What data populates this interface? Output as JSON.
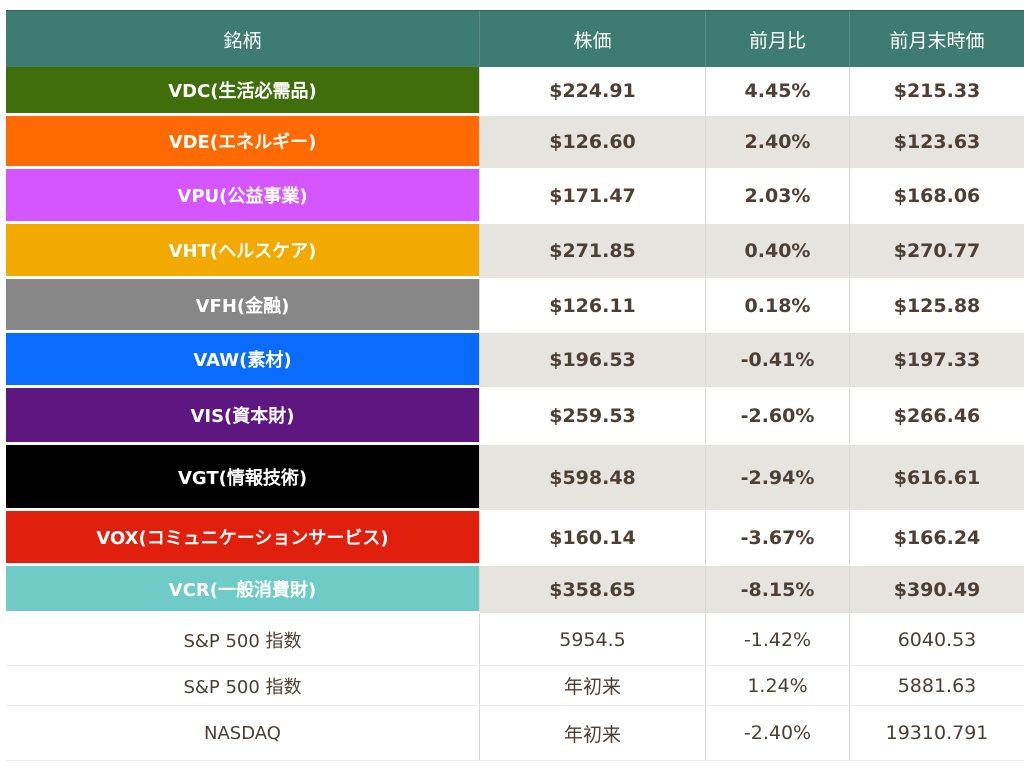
{
  "table": {
    "headers": [
      "銘柄",
      "株価",
      "前月比",
      "前月末時価"
    ],
    "rows": [
      {
        "name": "VDC(生活必需品)",
        "price": "$224.91",
        "change": "4.45%",
        "prev": "$215.33",
        "color": "#3f6e0b",
        "bg": "#ffffff",
        "bold": true
      },
      {
        "name": "VDE(エネルギー)",
        "price": "$126.60",
        "change": "2.40%",
        "prev": "$123.63",
        "color": "#ff6a00",
        "bg": "#e6e4df",
        "bold": true
      },
      {
        "name": "VPU(公益事業)",
        "price": "$171.47",
        "change": "2.03%",
        "prev": "$168.06",
        "color": "#d555ff",
        "bg": "#ffffff",
        "bold": true
      },
      {
        "name": "VHT(ヘルスケア)",
        "price": "$271.85",
        "change": "0.40%",
        "prev": "$270.77",
        "color": "#f2a900",
        "bg": "#e6e4df",
        "bold": true
      },
      {
        "name": "VFH(金融)",
        "price": "$126.11",
        "change": "0.18%",
        "prev": "$125.88",
        "color": "#878787",
        "bg": "#ffffff",
        "bold": true
      },
      {
        "name": "VAW(素材)",
        "price": "$196.53",
        "change": "-0.41%",
        "prev": "$197.33",
        "color": "#0a6cff",
        "bg": "#e6e4df",
        "bold": true
      },
      {
        "name": "VIS(資本財)",
        "price": "$259.53",
        "change": "-2.60%",
        "prev": "$266.46",
        "color": "#5e1780",
        "bg": "#ffffff",
        "bold": true
      },
      {
        "name": "VGT(情報技術)",
        "price": "$598.48",
        "change": "-2.94%",
        "prev": "$616.61",
        "color": "#000000",
        "bg": "#e6e4df",
        "bold": true
      },
      {
        "name": "VOX(コミュニケーションサービス)",
        "price": "$160.14",
        "change": "-3.67%",
        "prev": "$166.24",
        "color": "#e0200c",
        "bg": "#ffffff",
        "bold": true
      },
      {
        "name": "VCR(一般消費財)",
        "price": "$358.65",
        "change": "-8.15%",
        "prev": "$390.49",
        "color": "#6ecbc5",
        "bg": "#e6e4df",
        "bold": true
      },
      {
        "name": "S&P 500 指数",
        "price": "5954.5",
        "change": "-1.42%",
        "prev": "6040.53",
        "color": "#ffffff",
        "bg": "#ffffff",
        "bold": false
      },
      {
        "name": "S&P 500 指数",
        "price": "年初来",
        "change": "1.24%",
        "prev": "5881.63",
        "color": "#ffffff",
        "bg": "#ffffff",
        "bold": false
      },
      {
        "name": "NASDAQ",
        "price": "年初来",
        "change": "-2.40%",
        "prev": "19310.791",
        "color": "#ffffff",
        "bg": "#ffffff",
        "bold": false
      }
    ]
  }
}
